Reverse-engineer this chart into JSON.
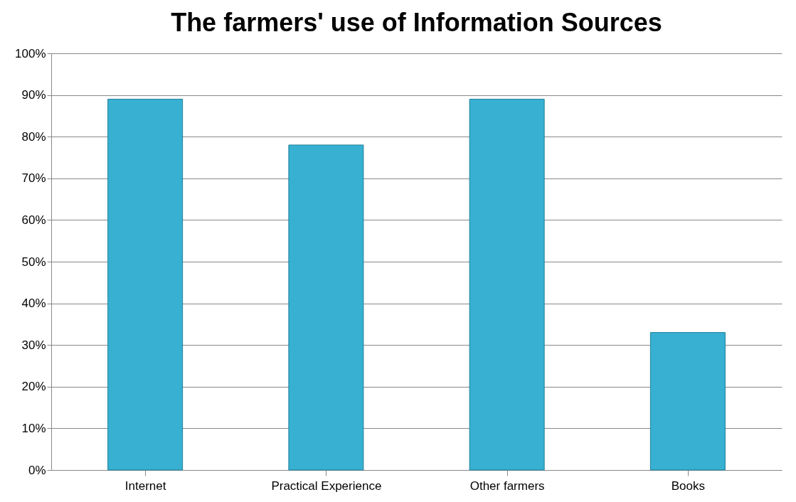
{
  "chart_data": {
    "type": "bar",
    "title": "The farmers' use of Information Sources",
    "categories": [
      "Internet",
      "Practical Experience",
      "Other farmers",
      "Books"
    ],
    "values": [
      89,
      78,
      89,
      33
    ],
    "color": "#37b0d2",
    "ylim": [
      0,
      100
    ],
    "yticks": [
      {
        "value": 0,
        "label": "0%"
      },
      {
        "value": 10,
        "label": "10%"
      },
      {
        "value": 20,
        "label": "20%"
      },
      {
        "value": 30,
        "label": "30%"
      },
      {
        "value": 40,
        "label": "40%"
      },
      {
        "value": 50,
        "label": "50%"
      },
      {
        "value": 60,
        "label": "60%"
      },
      {
        "value": 70,
        "label": "70%"
      },
      {
        "value": 80,
        "label": "80%"
      },
      {
        "value": 90,
        "label": "90%"
      },
      {
        "value": 100,
        "label": "100%"
      }
    ],
    "grid": "y"
  }
}
